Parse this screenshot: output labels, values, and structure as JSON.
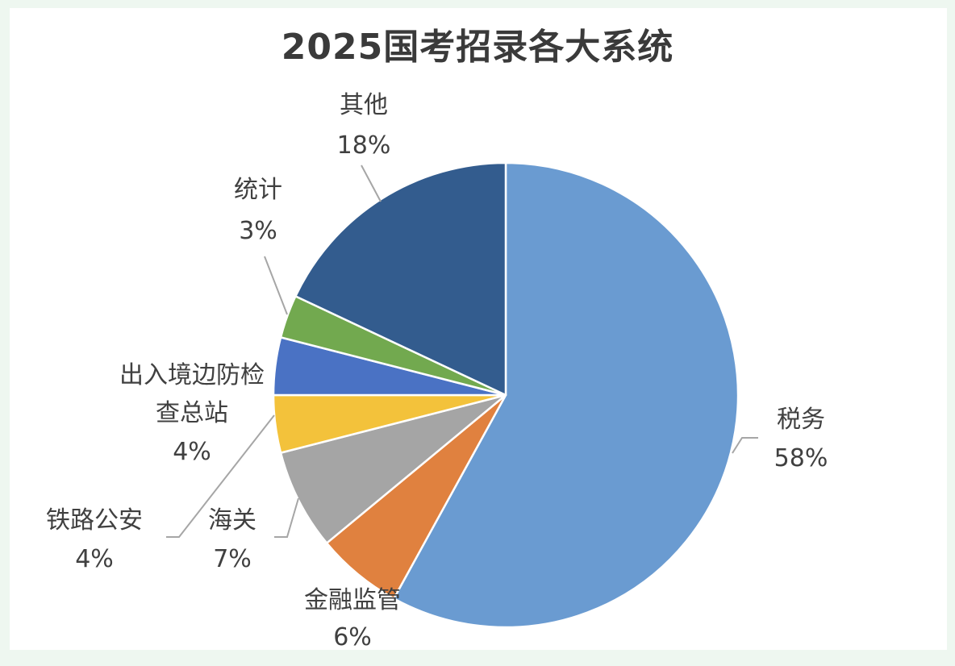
{
  "chart_data": {
    "type": "pie",
    "title": "2025国考招录各大系统",
    "slices": [
      {
        "label": "税务",
        "value": 58,
        "value_label": "58%",
        "color": "#6a9bd1"
      },
      {
        "label": "金融监管",
        "value": 6,
        "value_label": "6%",
        "color": "#e0813f"
      },
      {
        "label": "海关",
        "value": 7,
        "value_label": "7%",
        "color": "#a5a5a5"
      },
      {
        "label": "铁路公安",
        "value": 4,
        "value_label": "4%",
        "color": "#f3c23b"
      },
      {
        "label": "出入境边防检查总站",
        "value": 4,
        "value_label": "4%",
        "color": "#4a72c4"
      },
      {
        "label": "统计",
        "value": 3,
        "value_label": "3%",
        "color": "#72a94f"
      },
      {
        "label": "其他",
        "value": 18,
        "value_label": "18%",
        "color": "#335c8e"
      }
    ]
  }
}
